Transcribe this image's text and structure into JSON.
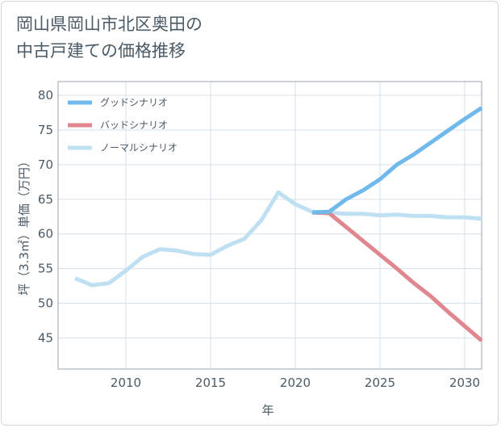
{
  "title": "岡山県岡山市北区奥田の\n中古戸建ての価格推移",
  "chart_data": {
    "type": "line",
    "title": "岡山県岡山市北区奥田の中古戸建ての価格推移",
    "xlabel": "年",
    "ylabel": "坪（3.3㎡）単価（万円）",
    "xlim": [
      2006,
      2031
    ],
    "ylim": [
      40.5,
      82
    ],
    "x_ticks": [
      2010,
      2015,
      2020,
      2025,
      2030
    ],
    "y_ticks": [
      45,
      50,
      55,
      60,
      65,
      70,
      75,
      80
    ],
    "grid": true,
    "legend_position": "top-left",
    "series": [
      {
        "name": "グッドシナリオ",
        "color": "#6fb9ec",
        "points": [
          [
            2021,
            63.1
          ],
          [
            2022,
            63.2
          ],
          [
            2023,
            65.0
          ],
          [
            2024,
            66.3
          ],
          [
            2025,
            67.9
          ],
          [
            2026,
            70.0
          ],
          [
            2027,
            71.5
          ],
          [
            2028,
            73.2
          ],
          [
            2029,
            74.9
          ],
          [
            2030,
            76.6
          ],
          [
            2031,
            78.2
          ]
        ]
      },
      {
        "name": "バッドシナリオ",
        "color": "#e0868e",
        "points": [
          [
            2021,
            63.1
          ],
          [
            2022,
            63.0
          ],
          [
            2023,
            61.0
          ],
          [
            2024,
            59.0
          ],
          [
            2025,
            57.0
          ],
          [
            2026,
            55.0
          ],
          [
            2027,
            52.9
          ],
          [
            2028,
            51.0
          ],
          [
            2029,
            48.8
          ],
          [
            2030,
            46.7
          ],
          [
            2031,
            44.6
          ]
        ]
      },
      {
        "name": "ノーマルシナリオ",
        "color": "#bfe0f2",
        "points": [
          [
            2007,
            53.6
          ],
          [
            2008,
            52.6
          ],
          [
            2009,
            52.9
          ],
          [
            2010,
            54.7
          ],
          [
            2011,
            56.7
          ],
          [
            2012,
            57.8
          ],
          [
            2013,
            57.6
          ],
          [
            2014,
            57.1
          ],
          [
            2015,
            57.0
          ],
          [
            2016,
            58.3
          ],
          [
            2017,
            59.3
          ],
          [
            2018,
            62.0
          ],
          [
            2019,
            66.0
          ],
          [
            2020,
            64.3
          ],
          [
            2021,
            63.2
          ],
          [
            2022,
            63.1
          ],
          [
            2023,
            62.9
          ],
          [
            2024,
            62.9
          ],
          [
            2025,
            62.7
          ],
          [
            2026,
            62.8
          ],
          [
            2027,
            62.6
          ],
          [
            2028,
            62.6
          ],
          [
            2029,
            62.4
          ],
          [
            2030,
            62.4
          ],
          [
            2031,
            62.2
          ]
        ]
      }
    ]
  }
}
